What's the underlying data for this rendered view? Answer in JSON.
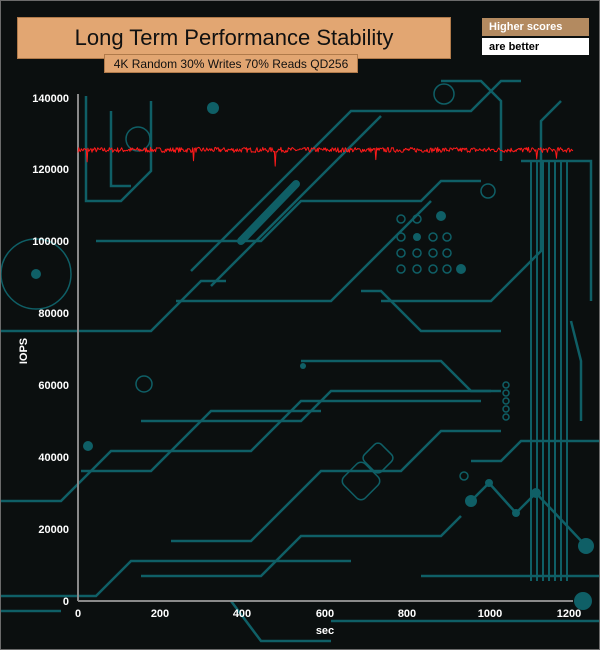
{
  "colors": {
    "background": "#0b0f0f",
    "circuit": "#0f5f66",
    "title_box": "#e2a672",
    "series_line": "#ff1a1a",
    "axis": "#8a8a8a"
  },
  "legend_note": {
    "line1": "Higher scores",
    "line2": "are better"
  },
  "chart_data": {
    "type": "line",
    "title": "Long Term Performance Stability",
    "subtitle": "4K Random 30% Writes 70% Reads QD256",
    "xlabel": "sec",
    "ylabel": "IOPS",
    "xlim": [
      0,
      1200
    ],
    "ylim": [
      0,
      140000
    ],
    "x_ticks": [
      "0",
      "200",
      "400",
      "600",
      "800",
      "1000",
      "1200"
    ],
    "y_ticks": [
      "0",
      "20000",
      "40000",
      "60000",
      "80000",
      "100000",
      "120000",
      "140000"
    ],
    "grid": false,
    "series": [
      {
        "baseline": 125800,
        "noise": 700,
        "x_end": 1200,
        "dips": [
          [
            22,
            122500
          ],
          [
            207,
            121000
          ],
          [
            280,
            122800
          ],
          [
            478,
            121300
          ],
          [
            722,
            123100
          ],
          [
            1112,
            123300
          ],
          [
            1160,
            123500
          ]
        ]
      }
    ]
  }
}
